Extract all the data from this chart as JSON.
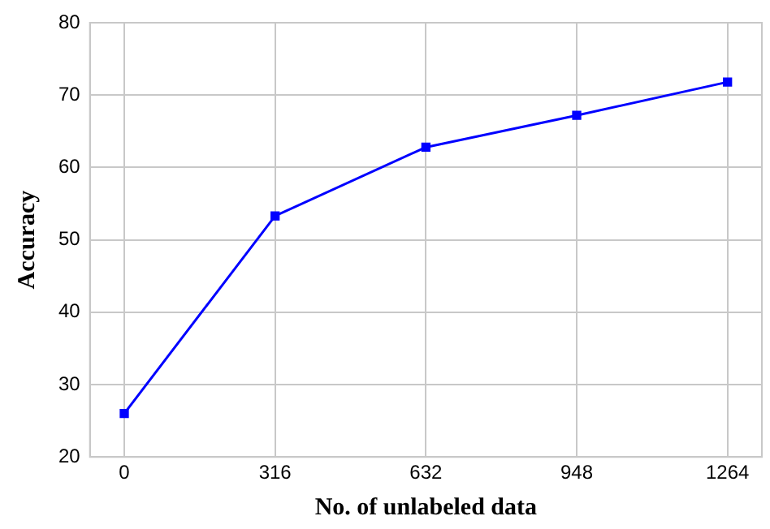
{
  "chart_data": {
    "type": "line",
    "xlabel": "No. of unlabeled data",
    "ylabel": "Accuracy",
    "x": [
      0,
      316,
      632,
      948,
      1264
    ],
    "series": [
      {
        "color": "#0000ff",
        "values": [
          26,
          53.3,
          62.8,
          67.2,
          71.8
        ]
      }
    ],
    "xlim": [
      -72,
      1336
    ],
    "xticks": [
      0,
      316,
      632,
      948,
      1264
    ],
    "ylim": [
      20,
      80
    ],
    "yticks": [
      20,
      30,
      40,
      50,
      60,
      70,
      80
    ],
    "grid": true,
    "legend": false,
    "marker": "square",
    "line_style": "solid"
  }
}
